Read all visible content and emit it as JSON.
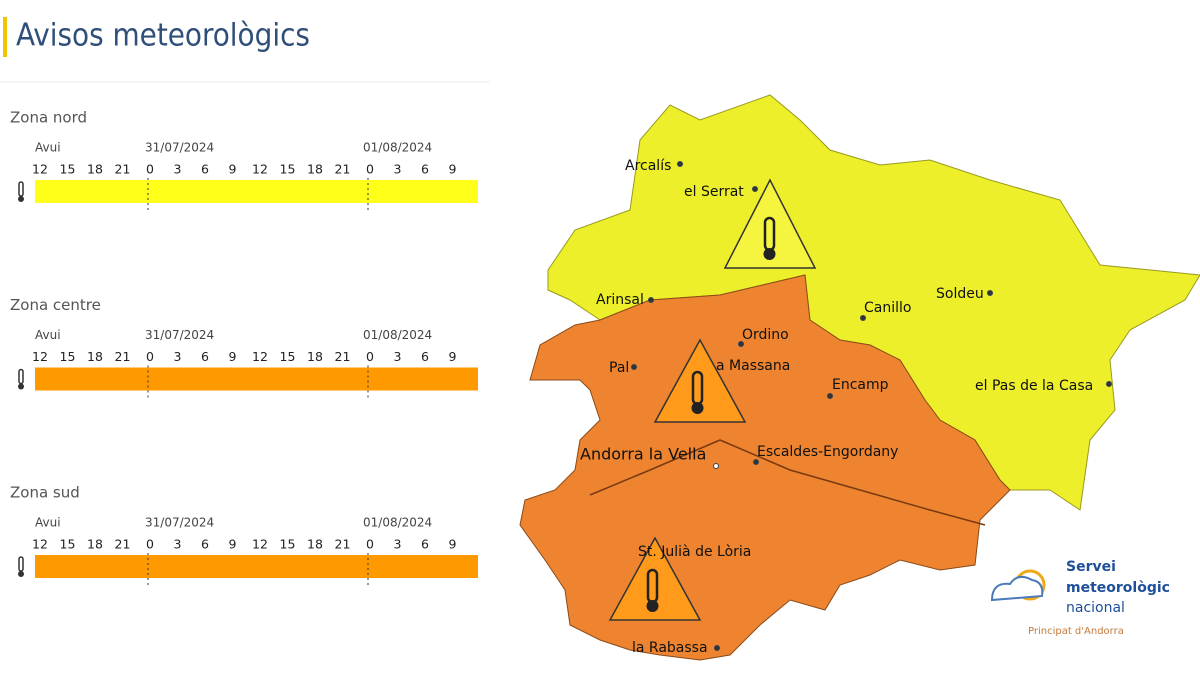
{
  "header": {
    "title": "Avisos meteorològics"
  },
  "zones": [
    {
      "name": "Zona nord",
      "day_labels": [
        "Avui",
        "31/07/2024",
        "01/08/2024"
      ],
      "hours": [
        12,
        15,
        18,
        21,
        0,
        3,
        6,
        9,
        12,
        15,
        18,
        21,
        0,
        3,
        6,
        9
      ],
      "color": "#ffff1a"
    },
    {
      "name": "Zona centre",
      "day_labels": [
        "Avui",
        "31/07/2024",
        "01/08/2024"
      ],
      "hours": [
        12,
        15,
        18,
        21,
        0,
        3,
        6,
        9,
        12,
        15,
        18,
        21,
        0,
        3,
        6,
        9
      ],
      "color": "#ff9900"
    },
    {
      "name": "Zona sud",
      "day_labels": [
        "Avui",
        "31/07/2024",
        "01/08/2024"
      ],
      "hours": [
        12,
        15,
        18,
        21,
        0,
        3,
        6,
        9,
        12,
        15,
        18,
        21,
        0,
        3,
        6,
        9
      ],
      "color": "#ff9900"
    }
  ],
  "map": {
    "places": [
      "Arcalís",
      "el Serrat",
      "Arinsal",
      "Canillo",
      "Soldeu",
      "el Pas de la Casa",
      "Ordino",
      "Pal",
      "a Massana",
      "Encamp",
      "Andorra la Vella",
      "Escaldes-Engordany",
      "St. Julià de Lòria",
      "la Rabassa"
    ],
    "north_color": "#ecef2a",
    "south_color": "#ee8430"
  },
  "logo": {
    "lines": [
      "Servei",
      "meteorològic",
      "nacional"
    ],
    "subtitle": "Principat d'Andorra"
  }
}
